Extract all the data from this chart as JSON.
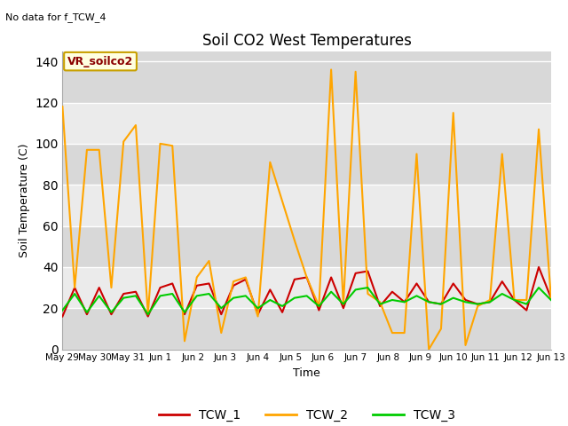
{
  "title": "Soil CO2 West Temperatures",
  "subtitle": "No data for f_TCW_4",
  "ylabel": "Soil Temperature (C)",
  "xlabel": "Time",
  "ylim": [
    0,
    145
  ],
  "yticks": [
    0,
    20,
    40,
    60,
    80,
    100,
    120,
    140
  ],
  "legend_label": "VR_soilco2",
  "line_colors": {
    "TCW_1": "#cc0000",
    "TCW_2": "#ffa500",
    "TCW_3": "#00cc00"
  },
  "x_labels": [
    "May 29",
    "May 30",
    "May 31",
    "Jun 1",
    "Jun 2",
    "Jun 3",
    "Jun 4",
    "Jun 5",
    "Jun 6",
    "Jun 7",
    "Jun 8",
    "Jun 9",
    "Jun 10",
    "Jun 11",
    "Jun 12",
    "Jun 13"
  ],
  "TCW_1": [
    16,
    30,
    17,
    30,
    17,
    27,
    28,
    16,
    30,
    32,
    17,
    31,
    32,
    17,
    31,
    34,
    17,
    29,
    18,
    34,
    35,
    19,
    35,
    20,
    37,
    38,
    21,
    28,
    23,
    32,
    23,
    22,
    32,
    24,
    22,
    23,
    33,
    24,
    19,
    40,
    25
  ],
  "TCW_2": [
    118,
    30,
    97,
    97,
    30,
    101,
    109,
    17,
    100,
    99,
    4,
    35,
    43,
    8,
    33,
    35,
    16,
    91,
    72,
    53,
    35,
    21,
    136,
    22,
    135,
    27,
    23,
    8,
    8,
    95,
    0,
    10,
    115,
    2,
    21,
    24,
    95,
    24,
    24,
    107,
    25
  ],
  "TCW_3": [
    19,
    27,
    18,
    26,
    18,
    25,
    26,
    17,
    26,
    27,
    18,
    26,
    27,
    20,
    25,
    26,
    20,
    24,
    21,
    25,
    26,
    21,
    28,
    22,
    29,
    30,
    22,
    24,
    23,
    26,
    23,
    22,
    25,
    23,
    22,
    23,
    27,
    24,
    22,
    30,
    24
  ],
  "dark_band_color": "#d8d8d8",
  "light_band_color": "#ebebeb",
  "fig_bg": "#ffffff"
}
